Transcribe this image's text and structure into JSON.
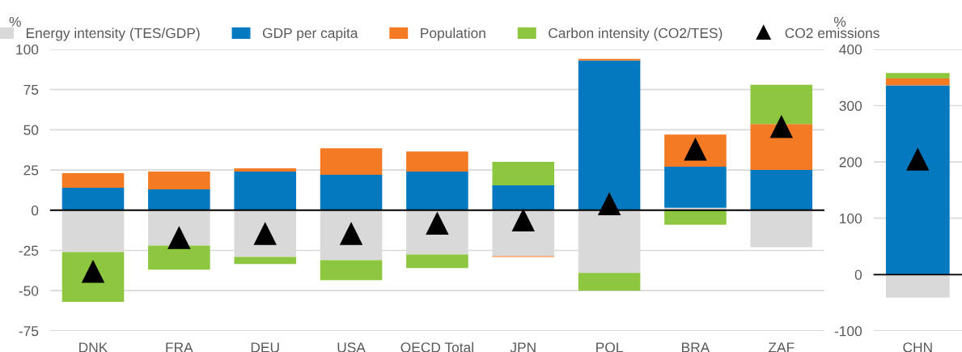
{
  "chart_data": [
    {
      "type": "bar",
      "stacked": true,
      "ylabel": "%",
      "categories": [
        "DNK",
        "FRA",
        "DEU",
        "USA",
        "OECD Total",
        "JPN",
        "POL",
        "BRA",
        "ZAF"
      ],
      "ylim": [
        -75,
        100
      ],
      "yticks": [
        -75,
        -50,
        -25,
        0,
        25,
        50,
        75,
        100
      ],
      "grid": "y",
      "legend": "top",
      "ref_lines": [
        {
          "axis": "y",
          "value": 0,
          "color": "#000000"
        }
      ],
      "series": [
        {
          "name": "Energy intensity (TES/GDP)",
          "color": "#d9d9d9",
          "values": [
            -26,
            -22,
            -29,
            -31,
            -27.5,
            -28.5,
            -39,
            1.5,
            -23
          ]
        },
        {
          "name": "GDP per capita",
          "color": "#0479c0",
          "values": [
            14,
            13,
            24,
            22,
            24,
            15.5,
            93,
            25.5,
            25
          ]
        },
        {
          "name": "Population",
          "color": "#f47b24",
          "values": [
            9,
            11,
            2,
            16.5,
            12.5,
            -0.5,
            1,
            20,
            28.5
          ]
        },
        {
          "name": "Carbon intensity (CO2/TES)",
          "color": "#8dc63f",
          "values": [
            -31,
            -15,
            -4.5,
            -12.5,
            -8.5,
            14.5,
            -11,
            -9,
            24.5
          ]
        },
        {
          "name": "CO2 emissions",
          "type": "scatter",
          "marker": "triangle",
          "color": "#000000",
          "values": [
            -38,
            -17,
            -14.5,
            -14.5,
            -8,
            -6,
            4,
            38,
            52
          ]
        }
      ]
    },
    {
      "type": "bar",
      "stacked": true,
      "ylabel": "%",
      "categories": [
        "CHN"
      ],
      "ylim": [
        -100,
        400
      ],
      "yticks": [
        -100,
        0,
        100,
        200,
        300,
        400
      ],
      "grid": "y",
      "ref_lines": [
        {
          "axis": "y",
          "value": 0,
          "color": "#000000"
        }
      ],
      "series": [
        {
          "color": "#d9d9d9",
          "values": [
            -41
          ]
        },
        {
          "color": "#0479c0",
          "values": [
            336
          ]
        },
        {
          "color": "#f47b24",
          "values": [
            12
          ]
        },
        {
          "color": "#8dc63f",
          "values": [
            10
          ]
        },
        {
          "type": "scatter",
          "marker": "triangle",
          "color": "#000000",
          "values": [
            205
          ]
        }
      ]
    }
  ]
}
